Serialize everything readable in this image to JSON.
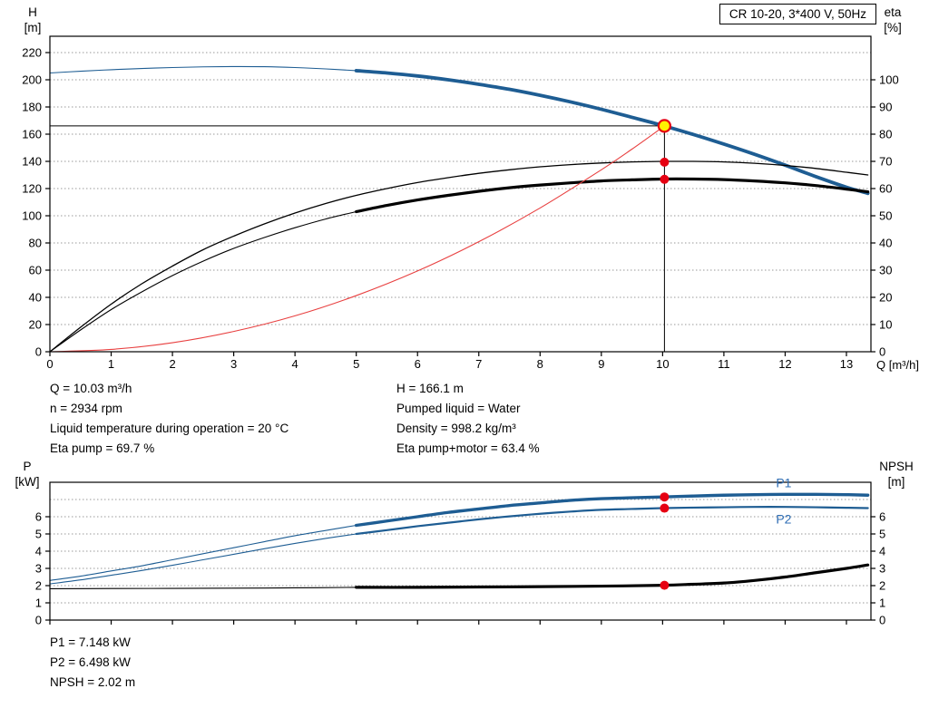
{
  "title_box": "CR 10-20, 3*400 V, 50Hz",
  "colors": {
    "curve_blue": "#1E5D93",
    "label_blue": "#2E6DB4",
    "system_red": "#E84040",
    "marker_red": "#E60012",
    "duty_yellow": "#FFF100",
    "black": "#000000",
    "grid_gray": "#999999"
  },
  "info_top": {
    "left": [
      "Q = 10.03 m³/h",
      "n = 2934 rpm",
      "Liquid temperature during operation = 20 °C",
      "Eta pump = 69.7 %"
    ],
    "right": [
      "H = 166.1 m",
      "Pumped liquid = Water",
      "Density = 998.2 kg/m³",
      "Eta pump+motor = 63.4 %"
    ]
  },
  "info_bottom": [
    "P1 = 7.148 kW",
    "P2 = 6.498 kW",
    "NPSH = 2.02 m"
  ],
  "chart_data": [
    {
      "type": "line",
      "name": "hq-eta-chart",
      "x": {
        "label": "Q [m³/h]",
        "min": 0,
        "max": 13.4,
        "ticks": [
          0,
          1,
          2,
          3,
          4,
          5,
          6,
          7,
          8,
          9,
          10,
          11,
          12,
          13
        ]
      },
      "y_left": {
        "label": [
          "H",
          "[m]"
        ],
        "min": 0,
        "max": 232,
        "ticks": [
          0,
          20,
          40,
          60,
          80,
          100,
          120,
          140,
          160,
          180,
          200,
          220
        ]
      },
      "y_right": {
        "label": [
          "eta",
          "[%]"
        ],
        "min": 0,
        "max": 116,
        "ticks": [
          0,
          10,
          20,
          30,
          40,
          50,
          60,
          70,
          80,
          90,
          100
        ],
        "grid": []
      },
      "series": [
        {
          "name": "pump-curve-low",
          "axis": "left",
          "color": "#1E5D93",
          "width": 1.1,
          "points": [
            [
              0,
              205
            ],
            [
              0.5,
              206.3
            ],
            [
              1,
              207.4
            ],
            [
              1.5,
              208.3
            ],
            [
              2,
              209
            ],
            [
              2.5,
              209.5
            ],
            [
              3,
              209.7
            ],
            [
              3.5,
              209.6
            ],
            [
              4,
              209
            ],
            [
              4.5,
              208
            ],
            [
              5,
              206.7
            ]
          ]
        },
        {
          "name": "pump-curve",
          "axis": "left",
          "color": "#1E5D93",
          "width": 3.8,
          "points": [
            [
              5,
              206.7
            ],
            [
              5.5,
              205
            ],
            [
              6,
              202.8
            ],
            [
              6.5,
              200
            ],
            [
              7,
              196.7
            ],
            [
              7.5,
              193
            ],
            [
              8,
              188.6
            ],
            [
              8.5,
              183.7
            ],
            [
              9,
              178.3
            ],
            [
              9.5,
              172.4
            ],
            [
              10,
              166.4
            ],
            [
              10.5,
              159.8
            ],
            [
              11,
              152.7
            ],
            [
              11.5,
              145.2
            ],
            [
              12,
              137.2
            ],
            [
              12.5,
              128.8
            ],
            [
              13,
              121
            ],
            [
              13.35,
              116.5
            ]
          ]
        },
        {
          "name": "eta-pump",
          "axis": "right",
          "color": "#000000",
          "width": 1.3,
          "points": [
            [
              0,
              0
            ],
            [
              0.5,
              9
            ],
            [
              1,
              17.5
            ],
            [
              1.5,
              25
            ],
            [
              2,
              31.5
            ],
            [
              2.5,
              37.5
            ],
            [
              3,
              42.5
            ],
            [
              3.5,
              47
            ],
            [
              4,
              51
            ],
            [
              4.5,
              54.5
            ],
            [
              5,
              57.5
            ],
            [
              5.5,
              60
            ],
            [
              6,
              62.2
            ],
            [
              6.5,
              64
            ],
            [
              7,
              65.6
            ],
            [
              7.5,
              66.9
            ],
            [
              8,
              68
            ],
            [
              8.5,
              68.8
            ],
            [
              9,
              69.4
            ],
            [
              9.5,
              69.8
            ],
            [
              10,
              70
            ],
            [
              10.5,
              70
            ],
            [
              11,
              69.8
            ],
            [
              11.5,
              69.3
            ],
            [
              12,
              68.5
            ],
            [
              12.5,
              67.4
            ],
            [
              13,
              66
            ],
            [
              13.35,
              65
            ]
          ]
        },
        {
          "name": "eta-pump-motor-low",
          "axis": "right",
          "color": "#000000",
          "width": 1.1,
          "points": [
            [
              0,
              0
            ],
            [
              0.5,
              8
            ],
            [
              1,
              15.5
            ],
            [
              1.5,
              22
            ],
            [
              2,
              28
            ],
            [
              2.5,
              33.3
            ],
            [
              3,
              38
            ],
            [
              3.5,
              42
            ],
            [
              4,
              45.6
            ],
            [
              4.5,
              48.8
            ],
            [
              5,
              51.5
            ]
          ]
        },
        {
          "name": "eta-pump-motor",
          "axis": "right",
          "color": "#000000",
          "width": 3.2,
          "points": [
            [
              5,
              51.5
            ],
            [
              5.5,
              53.8
            ],
            [
              6,
              55.8
            ],
            [
              6.5,
              57.5
            ],
            [
              7,
              59
            ],
            [
              7.5,
              60.3
            ],
            [
              8,
              61.3
            ],
            [
              8.5,
              62.1
            ],
            [
              9,
              62.8
            ],
            [
              9.5,
              63.2
            ],
            [
              10,
              63.5
            ],
            [
              10.5,
              63.5
            ],
            [
              11,
              63.3
            ],
            [
              11.5,
              62.8
            ],
            [
              12,
              62.1
            ],
            [
              12.5,
              61.1
            ],
            [
              13,
              59.8
            ],
            [
              13.35,
              58.8
            ]
          ]
        },
        {
          "name": "system-curve",
          "axis": "left",
          "color": "#E84040",
          "width": 1.1,
          "points": [
            [
              0,
              0
            ],
            [
              1,
              1.7
            ],
            [
              2,
              6.6
            ],
            [
              3,
              14.9
            ],
            [
              4,
              26.4
            ],
            [
              5,
              41.3
            ],
            [
              6,
              59.4
            ],
            [
              7,
              80.9
            ],
            [
              8,
              105.7
            ],
            [
              9,
              133.8
            ],
            [
              9.5,
              149
            ],
            [
              10,
              165.1
            ],
            [
              10.03,
              166.1
            ]
          ]
        }
      ],
      "guides": [
        {
          "q": 10.03,
          "value": 166.1,
          "axis": "left"
        }
      ],
      "markers": [
        {
          "name": "duty-point",
          "q": 10.03,
          "value": 166.1,
          "axis": "left",
          "fill": "#FFF100",
          "stroke": "#E60012",
          "sw": 2.2,
          "r": 6.5,
          "interactable": true
        },
        {
          "name": "eta-pump-point",
          "q": 10.03,
          "value": 69.7,
          "axis": "right",
          "fill": "#E60012",
          "r": 5
        },
        {
          "name": "eta-pump-motor-point",
          "q": 10.03,
          "value": 63.4,
          "axis": "right",
          "fill": "#E60012",
          "r": 5
        }
      ],
      "series_labels": []
    },
    {
      "type": "line",
      "name": "power-npsh-chart",
      "x": {
        "label": "",
        "min": 0,
        "max": 13.4,
        "ticks": [
          0,
          1,
          2,
          3,
          4,
          5,
          6,
          7,
          8,
          9,
          10,
          11,
          12,
          13
        ]
      },
      "y_left": {
        "label": [
          "P",
          "[kW]"
        ],
        "min": 0,
        "max": 8,
        "ticks": [
          0,
          1,
          2,
          3,
          4,
          5,
          6
        ],
        "grid": [
          1,
          2,
          3,
          4,
          5,
          6,
          7
        ]
      },
      "y_right": {
        "label": [
          "NPSH",
          "[m]"
        ],
        "min": 0,
        "max": 8,
        "ticks": [
          0,
          1,
          2,
          3,
          4,
          5,
          6
        ],
        "grid": []
      },
      "series": [
        {
          "name": "p1-low",
          "axis": "left",
          "color": "#1E5D93",
          "width": 1.1,
          "points": [
            [
              0,
              2.3
            ],
            [
              0.5,
              2.55
            ],
            [
              1,
              2.85
            ],
            [
              1.5,
              3.15
            ],
            [
              2,
              3.5
            ],
            [
              2.5,
              3.85
            ],
            [
              3,
              4.2
            ],
            [
              3.5,
              4.55
            ],
            [
              4,
              4.9
            ],
            [
              4.5,
              5.2
            ],
            [
              5,
              5.5
            ]
          ]
        },
        {
          "name": "p1",
          "axis": "left",
          "color": "#1E5D93",
          "width": 3.4,
          "points": [
            [
              5,
              5.5
            ],
            [
              5.5,
              5.75
            ],
            [
              6,
              6.0
            ],
            [
              6.5,
              6.25
            ],
            [
              7,
              6.45
            ],
            [
              7.5,
              6.65
            ],
            [
              8,
              6.8
            ],
            [
              8.5,
              6.95
            ],
            [
              9,
              7.05
            ],
            [
              9.5,
              7.1
            ],
            [
              10,
              7.15
            ],
            [
              10.5,
              7.2
            ],
            [
              11,
              7.25
            ],
            [
              11.5,
              7.28
            ],
            [
              12,
              7.3
            ],
            [
              12.5,
              7.3
            ],
            [
              13,
              7.28
            ],
            [
              13.35,
              7.25
            ]
          ]
        },
        {
          "name": "p2-low",
          "axis": "left",
          "color": "#1E5D93",
          "width": 1.1,
          "points": [
            [
              0,
              2.1
            ],
            [
              0.5,
              2.33
            ],
            [
              1,
              2.6
            ],
            [
              1.5,
              2.88
            ],
            [
              2,
              3.18
            ],
            [
              2.5,
              3.5
            ],
            [
              3,
              3.82
            ],
            [
              3.5,
              4.14
            ],
            [
              4,
              4.45
            ],
            [
              4.5,
              4.74
            ],
            [
              5,
              5.0
            ]
          ]
        },
        {
          "name": "p2",
          "axis": "left",
          "color": "#1E5D93",
          "width": 2.2,
          "points": [
            [
              5,
              5.0
            ],
            [
              5.5,
              5.22
            ],
            [
              6,
              5.45
            ],
            [
              6.5,
              5.65
            ],
            [
              7,
              5.85
            ],
            [
              7.5,
              6.02
            ],
            [
              8,
              6.17
            ],
            [
              8.5,
              6.3
            ],
            [
              9,
              6.4
            ],
            [
              9.5,
              6.45
            ],
            [
              10,
              6.5
            ],
            [
              10.5,
              6.53
            ],
            [
              11,
              6.55
            ],
            [
              11.5,
              6.57
            ],
            [
              12,
              6.57
            ],
            [
              12.5,
              6.55
            ],
            [
              13,
              6.52
            ],
            [
              13.35,
              6.5
            ]
          ]
        },
        {
          "name": "npsh-low",
          "axis": "right",
          "color": "#000000",
          "width": 1.1,
          "points": [
            [
              0,
              1.82
            ],
            [
              1,
              1.83
            ],
            [
              2,
              1.84
            ],
            [
              3,
              1.85
            ],
            [
              4,
              1.87
            ],
            [
              5,
              1.9
            ]
          ]
        },
        {
          "name": "npsh",
          "axis": "right",
          "color": "#000000",
          "width": 3.2,
          "points": [
            [
              5,
              1.9
            ],
            [
              6,
              1.9
            ],
            [
              7,
              1.92
            ],
            [
              8,
              1.94
            ],
            [
              9,
              1.97
            ],
            [
              10,
              2.02
            ],
            [
              10.5,
              2.08
            ],
            [
              11,
              2.15
            ],
            [
              11.5,
              2.3
            ],
            [
              12,
              2.5
            ],
            [
              12.5,
              2.75
            ],
            [
              13,
              3.0
            ],
            [
              13.35,
              3.2
            ]
          ]
        }
      ],
      "guides": [],
      "markers": [
        {
          "name": "p1-point",
          "q": 10.03,
          "value": 7.148,
          "axis": "left",
          "fill": "#E60012",
          "r": 5
        },
        {
          "name": "p2-point",
          "q": 10.03,
          "value": 6.498,
          "axis": "left",
          "fill": "#E60012",
          "r": 5
        },
        {
          "name": "npsh-point",
          "q": 10.03,
          "value": 2.02,
          "axis": "right",
          "fill": "#E60012",
          "r": 5
        }
      ],
      "series_labels": [
        {
          "text": "P1",
          "q": 11.85,
          "value": 7.7,
          "axis": "left",
          "color": "#2E6DB4"
        },
        {
          "text": "P2",
          "q": 11.85,
          "value": 5.6,
          "axis": "left",
          "color": "#2E6DB4"
        }
      ]
    }
  ]
}
